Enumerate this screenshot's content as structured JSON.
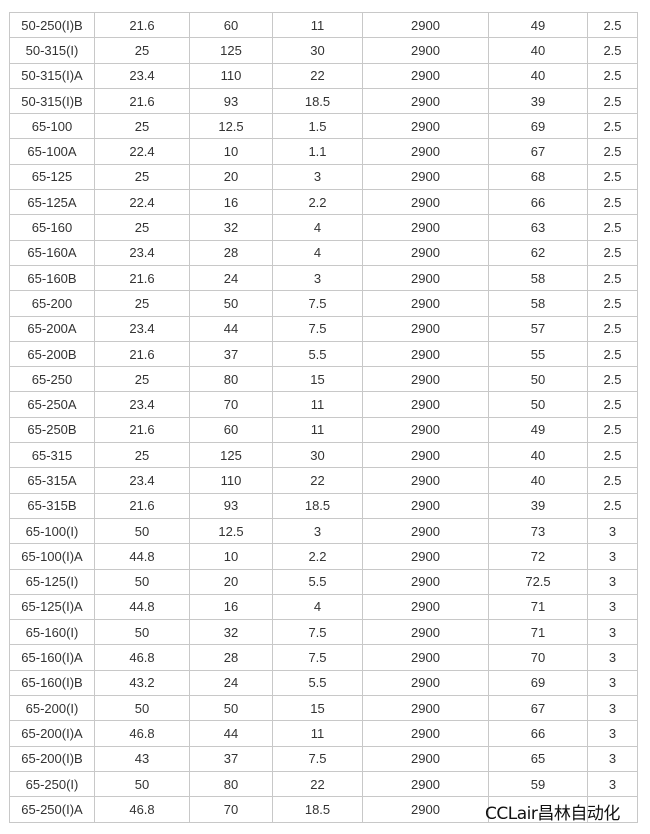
{
  "rows": [
    [
      "50-250(I)B",
      "21.6",
      "60",
      "11",
      "2900",
      "49",
      "2.5"
    ],
    [
      "50-315(I)",
      "25",
      "125",
      "30",
      "2900",
      "40",
      "2.5"
    ],
    [
      "50-315(I)A",
      "23.4",
      "110",
      "22",
      "2900",
      "40",
      "2.5"
    ],
    [
      "50-315(I)B",
      "21.6",
      "93",
      "18.5",
      "2900",
      "39",
      "2.5"
    ],
    [
      "65-100",
      "25",
      "12.5",
      "1.5",
      "2900",
      "69",
      "2.5"
    ],
    [
      "65-100A",
      "22.4",
      "10",
      "1.1",
      "2900",
      "67",
      "2.5"
    ],
    [
      "65-125",
      "25",
      "20",
      "3",
      "2900",
      "68",
      "2.5"
    ],
    [
      "65-125A",
      "22.4",
      "16",
      "2.2",
      "2900",
      "66",
      "2.5"
    ],
    [
      "65-160",
      "25",
      "32",
      "4",
      "2900",
      "63",
      "2.5"
    ],
    [
      "65-160A",
      "23.4",
      "28",
      "4",
      "2900",
      "62",
      "2.5"
    ],
    [
      "65-160B",
      "21.6",
      "24",
      "3",
      "2900",
      "58",
      "2.5"
    ],
    [
      "65-200",
      "25",
      "50",
      "7.5",
      "2900",
      "58",
      "2.5"
    ],
    [
      "65-200A",
      "23.4",
      "44",
      "7.5",
      "2900",
      "57",
      "2.5"
    ],
    [
      "65-200B",
      "21.6",
      "37",
      "5.5",
      "2900",
      "55",
      "2.5"
    ],
    [
      "65-250",
      "25",
      "80",
      "15",
      "2900",
      "50",
      "2.5"
    ],
    [
      "65-250A",
      "23.4",
      "70",
      "11",
      "2900",
      "50",
      "2.5"
    ],
    [
      "65-250B",
      "21.6",
      "60",
      "11",
      "2900",
      "49",
      "2.5"
    ],
    [
      "65-315",
      "25",
      "125",
      "30",
      "2900",
      "40",
      "2.5"
    ],
    [
      "65-315A",
      "23.4",
      "110",
      "22",
      "2900",
      "40",
      "2.5"
    ],
    [
      "65-315B",
      "21.6",
      "93",
      "18.5",
      "2900",
      "39",
      "2.5"
    ],
    [
      "65-100(I)",
      "50",
      "12.5",
      "3",
      "2900",
      "73",
      "3"
    ],
    [
      "65-100(I)A",
      "44.8",
      "10",
      "2.2",
      "2900",
      "72",
      "3"
    ],
    [
      "65-125(I)",
      "50",
      "20",
      "5.5",
      "2900",
      "72.5",
      "3"
    ],
    [
      "65-125(I)A",
      "44.8",
      "16",
      "4",
      "2900",
      "71",
      "3"
    ],
    [
      "65-160(I)",
      "50",
      "32",
      "7.5",
      "2900",
      "71",
      "3"
    ],
    [
      "65-160(I)A",
      "46.8",
      "28",
      "7.5",
      "2900",
      "70",
      "3"
    ],
    [
      "65-160(I)B",
      "43.2",
      "24",
      "5.5",
      "2900",
      "69",
      "3"
    ],
    [
      "65-200(I)",
      "50",
      "50",
      "15",
      "2900",
      "67",
      "3"
    ],
    [
      "65-200(I)A",
      "46.8",
      "44",
      "11",
      "2900",
      "66",
      "3"
    ],
    [
      "65-200(I)B",
      "43",
      "37",
      "7.5",
      "2900",
      "65",
      "3"
    ],
    [
      "65-250(I)",
      "50",
      "80",
      "22",
      "2900",
      "59",
      "3"
    ],
    [
      "65-250(I)A",
      "46.8",
      "70",
      "18.5",
      "2900",
      "",
      ""
    ]
  ],
  "watermark": "CCLair昌林自动化"
}
